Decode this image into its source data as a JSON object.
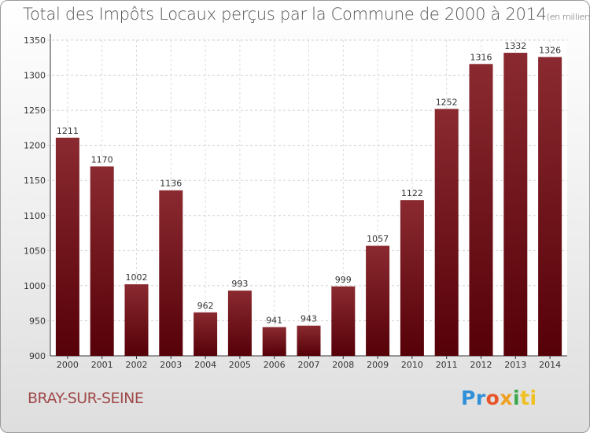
{
  "chart_data": {
    "type": "bar",
    "title": "Total des Impôts Locaux perçus par la Commune de 2000 à 2014",
    "unit": "(en milliers d'€)",
    "categories": [
      "2000",
      "2001",
      "2002",
      "2003",
      "2004",
      "2005",
      "2006",
      "2007",
      "2008",
      "2009",
      "2010",
      "2011",
      "2012",
      "2013",
      "2014"
    ],
    "values": [
      1211,
      1170,
      1002,
      1136,
      962,
      993,
      941,
      943,
      999,
      1057,
      1122,
      1252,
      1316,
      1332,
      1326
    ],
    "ylim": [
      900,
      1350
    ],
    "yticks": [
      900,
      950,
      1000,
      1050,
      1100,
      1150,
      1200,
      1250,
      1300,
      1350
    ],
    "xlabel": "",
    "ylabel": "",
    "grid": true,
    "bar_color": "#7a1a20"
  },
  "footer": {
    "commune": "BRAY-SUR-SEINE",
    "logo_parts": [
      "Pr",
      "o",
      "x",
      "i",
      "ti"
    ]
  }
}
